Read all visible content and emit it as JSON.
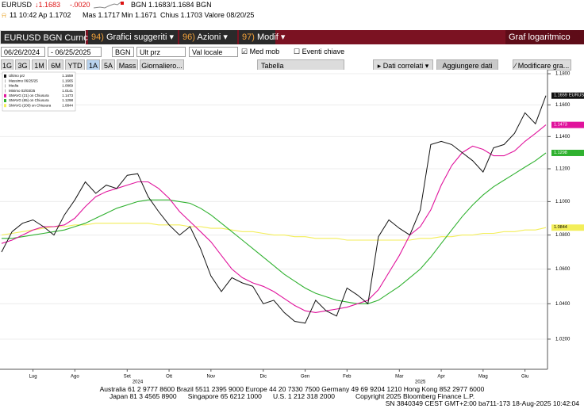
{
  "header": {
    "ticker": "EURUSD",
    "last": "↓1.1683",
    "change": "-.0020",
    "bid_ask": "BGN 1.1683/1.1684 BGN",
    "time": "11 10:42 Ap 1.1702",
    "high": "Mas 1.1717",
    "low": "Min 1.1671",
    "close": "Chius 1.1703 Valore 08/20/25"
  },
  "menu": {
    "security": "EURUSD BGN Curncy",
    "items": [
      {
        "num": "94)",
        "label": "Grafici suggeriti"
      },
      {
        "num": "96)",
        "label": "Azioni"
      },
      {
        "num": "97)",
        "label": "Modif"
      }
    ],
    "right": "Graf logaritmico"
  },
  "controls": {
    "start": "06/26/2024",
    "end": "- 06/25/2025",
    "source": "BGN",
    "field": "Ult prz",
    "currency": "Val locale",
    "moving_avg": "Med mob",
    "events": "Eventi chiave"
  },
  "toolbar": {
    "periods": [
      "1G",
      "3G",
      "1M",
      "6M",
      "YTD",
      "1A",
      "5A",
      "Mass",
      "Giornaliero..."
    ],
    "table": "Tabella",
    "related": "Dati correlati",
    "add": "Aggiungere dati",
    "modify": "Modificare gra..."
  },
  "chart_data": {
    "type": "line",
    "log_scale": true,
    "grid": true,
    "categories": [
      null,
      null,
      null,
      "Lug",
      null,
      null,
      null,
      "Ago",
      null,
      null,
      null,
      null,
      "Set",
      null,
      null,
      null,
      "Ott",
      null,
      null,
      null,
      "Nov",
      null,
      null,
      null,
      null,
      "Dic",
      null,
      null,
      null,
      "Gen",
      null,
      null,
      null,
      "Feb",
      null,
      null,
      null,
      null,
      "Mar",
      null,
      null,
      null,
      "Apr",
      null,
      null,
      null,
      "Mag",
      null,
      null,
      null,
      "Giu",
      null,
      null
    ],
    "year_categories": [
      null,
      null,
      null,
      null,
      null,
      null,
      null,
      null,
      null,
      null,
      null,
      null,
      null,
      "2024",
      null,
      null,
      null,
      null,
      null,
      null,
      null,
      null,
      null,
      null,
      null,
      null,
      null,
      null,
      null,
      null,
      null,
      null,
      null,
      null,
      null,
      null,
      null,
      null,
      null,
      null,
      "2025",
      null,
      null,
      null,
      null,
      null,
      null,
      null,
      null,
      null,
      null,
      null,
      null
    ],
    "ylim": [
      1.005,
      1.1826
    ],
    "yticks": [
      {
        "value": 1.02,
        "label": "1.0200"
      },
      {
        "value": 1.04,
        "label": "1.0400"
      },
      {
        "value": 1.06,
        "label": "1.0600"
      },
      {
        "value": 1.08,
        "label": "1.0800"
      },
      {
        "value": 1.1,
        "label": "1.1000"
      },
      {
        "value": 1.12,
        "label": "1.1200"
      },
      {
        "value": 1.14,
        "label": "1.1400"
      },
      {
        "value": 1.16,
        "label": "1.1600"
      },
      {
        "value": 1.18,
        "label": "1.1800"
      }
    ],
    "series": [
      {
        "name": "Ultimo prz",
        "color": "#111111",
        "values": [
          1.07,
          1.082,
          1.087,
          1.089,
          1.085,
          1.08,
          1.092,
          1.101,
          1.112,
          1.105,
          1.11,
          1.108,
          1.116,
          1.117,
          1.103,
          1.094,
          1.086,
          1.08,
          1.085,
          1.072,
          1.056,
          1.047,
          1.055,
          1.052,
          1.05,
          1.04,
          1.042,
          1.035,
          1.03,
          1.029,
          1.042,
          1.036,
          1.033,
          1.049,
          1.045,
          1.04,
          1.079,
          1.089,
          1.084,
          1.08,
          1.095,
          1.135,
          1.137,
          1.135,
          1.13,
          1.125,
          1.118,
          1.133,
          1.135,
          1.142,
          1.155,
          1.148,
          1.1659
        ]
      },
      {
        "name": "SMAVG (21)  on Chiusura",
        "color": "#e0139c",
        "values": [
          1.075,
          1.077,
          1.08,
          1.083,
          1.085,
          1.085,
          1.086,
          1.09,
          1.097,
          1.103,
          1.106,
          1.108,
          1.11,
          1.112,
          1.112,
          1.108,
          1.102,
          1.094,
          1.088,
          1.082,
          1.076,
          1.068,
          1.06,
          1.055,
          1.052,
          1.05,
          1.047,
          1.043,
          1.039,
          1.036,
          1.035,
          1.036,
          1.037,
          1.038,
          1.04,
          1.042,
          1.048,
          1.058,
          1.068,
          1.08,
          1.085,
          1.095,
          1.11,
          1.122,
          1.13,
          1.134,
          1.132,
          1.128,
          1.128,
          1.131,
          1.137,
          1.142,
          1.1473
        ]
      },
      {
        "name": "SMAVG (65)  on Chiusura",
        "color": "#2fb12f",
        "values": [
          1.078,
          1.078,
          1.079,
          1.08,
          1.081,
          1.082,
          1.083,
          1.085,
          1.087,
          1.09,
          1.093,
          1.096,
          1.098,
          1.1,
          1.101,
          1.101,
          1.101,
          1.1,
          1.099,
          1.096,
          1.092,
          1.087,
          1.082,
          1.077,
          1.072,
          1.067,
          1.062,
          1.057,
          1.053,
          1.049,
          1.046,
          1.044,
          1.042,
          1.041,
          1.04,
          1.04,
          1.042,
          1.046,
          1.05,
          1.055,
          1.06,
          1.067,
          1.075,
          1.083,
          1.091,
          1.098,
          1.104,
          1.109,
          1.113,
          1.117,
          1.121,
          1.125,
          1.1298
        ]
      },
      {
        "name": "SMAVG (200)  on Chiusura",
        "color": "#f3ee5a",
        "values": [
          1.08,
          1.081,
          1.082,
          1.083,
          1.084,
          1.085,
          1.085,
          1.086,
          1.086,
          1.087,
          1.087,
          1.087,
          1.087,
          1.087,
          1.087,
          1.086,
          1.086,
          1.086,
          1.085,
          1.085,
          1.084,
          1.084,
          1.083,
          1.082,
          1.082,
          1.081,
          1.08,
          1.08,
          1.079,
          1.079,
          1.078,
          1.078,
          1.078,
          1.077,
          1.077,
          1.077,
          1.077,
          1.077,
          1.077,
          1.077,
          1.078,
          1.078,
          1.079,
          1.079,
          1.08,
          1.08,
          1.081,
          1.081,
          1.082,
          1.082,
          1.083,
          1.083,
          1.0844
        ]
      }
    ],
    "stats": [
      {
        "label": "Massimo 06/25/25",
        "value": 1.1665
      },
      {
        "label": "Media",
        "value": 1.0869
      },
      {
        "label": "Minimo 02/03/25",
        "value": 1.0141
      }
    ]
  },
  "footer": [
    "Australia 61 2 9777 8600 Brazil 5511 2395 9000 Europe 44 20 7330 7500 Germany 49 69 9204 1210 Hong Kong 852 2977 6000",
    "Japan 81 3 4565 8900      Singapore 65 6212 1000      U.S. 1 212 318 2000           Copyright 2025 Bloomberg Finance L.P.",
    "SN 3840349 CEST GMT+2:00 ba711-173 18-Aug-2025 10:42:04"
  ]
}
